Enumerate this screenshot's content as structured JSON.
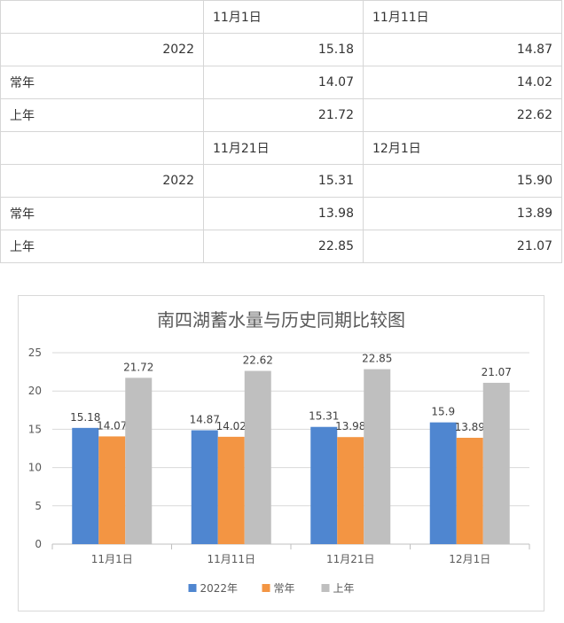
{
  "table": {
    "blocks": [
      {
        "headers": [
          "11月1日",
          "11月11日"
        ],
        "rows": [
          {
            "label": "2022",
            "values": [
              "15.18",
              "14.87"
            ]
          },
          {
            "label": "常年",
            "values": [
              "14.07",
              "14.02"
            ]
          },
          {
            "label": "上年",
            "values": [
              "21.72",
              "22.62"
            ]
          }
        ]
      },
      {
        "headers": [
          "11月21日",
          "12月1日"
        ],
        "rows": [
          {
            "label": "2022",
            "values": [
              "15.31",
              "15.90"
            ]
          },
          {
            "label": "常年",
            "values": [
              "13.98",
              "13.89"
            ]
          },
          {
            "label": "上年",
            "values": [
              "22.85",
              "21.07"
            ]
          }
        ]
      }
    ]
  },
  "chart_data": {
    "type": "bar",
    "title": "南四湖蓄水量与历史同期比较图",
    "xlabel": "",
    "ylabel": "",
    "categories": [
      "11月1日",
      "11月11日",
      "11月21日",
      "12月1日"
    ],
    "series": [
      {
        "name": "2022年",
        "values": [
          15.18,
          14.87,
          15.31,
          15.9
        ],
        "color": "#4f86d0"
      },
      {
        "name": "常年",
        "values": [
          14.07,
          14.02,
          13.98,
          13.89
        ],
        "color": "#f39543"
      },
      {
        "name": "上年",
        "values": [
          21.72,
          22.62,
          22.85,
          21.07
        ],
        "color": "#bfbfbf"
      }
    ],
    "ylim": [
      0,
      25
    ],
    "yticks": [
      0,
      5,
      10,
      15,
      20,
      25
    ],
    "grid": true,
    "legend": "bottom"
  }
}
